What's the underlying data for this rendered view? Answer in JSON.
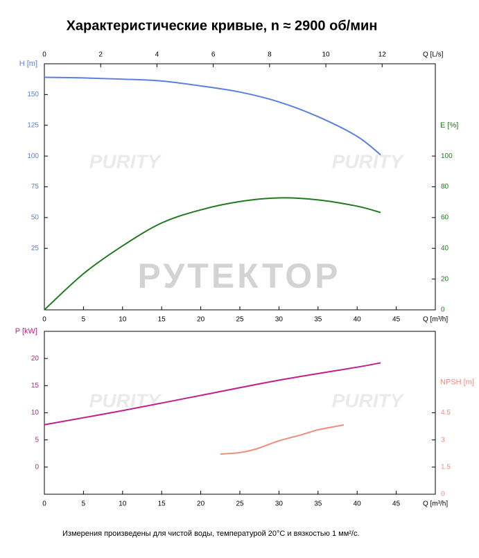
{
  "watermarks": [
    "РУТЕКТОР",
    "PURITY"
  ],
  "chart_data": [
    {
      "type": "line",
      "title": "Характеристические кривые, n ≈ 2900 об/мин",
      "xlabel": "Q [m³/h]",
      "x2label": "Q [L/s]",
      "ylabel": "H [m]",
      "y2label": "E [%]",
      "xlim": [
        0,
        50
      ],
      "xticks": [
        0,
        5,
        10,
        15,
        20,
        25,
        30,
        35,
        40,
        45
      ],
      "x2lim": [
        0,
        13.889
      ],
      "x2ticks": [
        0,
        2,
        4,
        6,
        8,
        10,
        12
      ],
      "ylim": [
        -25,
        175
      ],
      "yticks": [
        25,
        50,
        75,
        100,
        125,
        150
      ],
      "y2lim": [
        0,
        160
      ],
      "y2ticks": [
        0,
        20,
        40,
        60,
        80,
        100
      ],
      "series": [
        {
          "name": "H",
          "color": "#5b7fe0",
          "x": [
            0,
            5,
            10,
            15,
            20,
            25,
            30,
            35,
            40,
            43
          ],
          "values": [
            164,
            163.5,
            162.5,
            161,
            157,
            152,
            144,
            132,
            116,
            101
          ]
        },
        {
          "name": "E",
          "color": "#1f7a1f",
          "axis": "y2",
          "x": [
            0,
            5,
            10,
            15,
            20,
            25,
            30,
            35,
            40,
            43
          ],
          "values": [
            0,
            23.5,
            41.6,
            56.5,
            65,
            70.4,
            72.8,
            71.5,
            67.4,
            63.3
          ]
        }
      ]
    },
    {
      "type": "line",
      "note": "Измерения произведены для чистой воды, температурой 20°C и вязкостью 1 мм²/с.",
      "xlabel": "Q [m³/h]",
      "ylabel": "P [kW]",
      "y2label": "NPSH [m]",
      "xlim": [
        0,
        50
      ],
      "xticks": [
        0,
        5,
        10,
        15,
        20,
        25,
        30,
        35,
        40,
        45
      ],
      "ylim": [
        -5,
        25
      ],
      "yticks": [
        0,
        5,
        10,
        15,
        20
      ],
      "y2lim": [
        0,
        9
      ],
      "y2ticks": [
        0,
        1.5,
        3,
        4.5
      ],
      "series": [
        {
          "name": "P",
          "color": "#c0208a",
          "x": [
            0,
            10,
            20,
            30,
            40,
            43
          ],
          "values": [
            7.8,
            10.4,
            13.2,
            16.0,
            18.4,
            19.2
          ]
        },
        {
          "name": "NPSH",
          "color": "#f08c7c",
          "axis": "y2",
          "x": [
            22.5,
            25,
            27,
            30,
            33,
            35,
            38.3
          ],
          "values": [
            2.22,
            2.3,
            2.49,
            2.95,
            3.3,
            3.56,
            3.83
          ]
        }
      ]
    }
  ]
}
